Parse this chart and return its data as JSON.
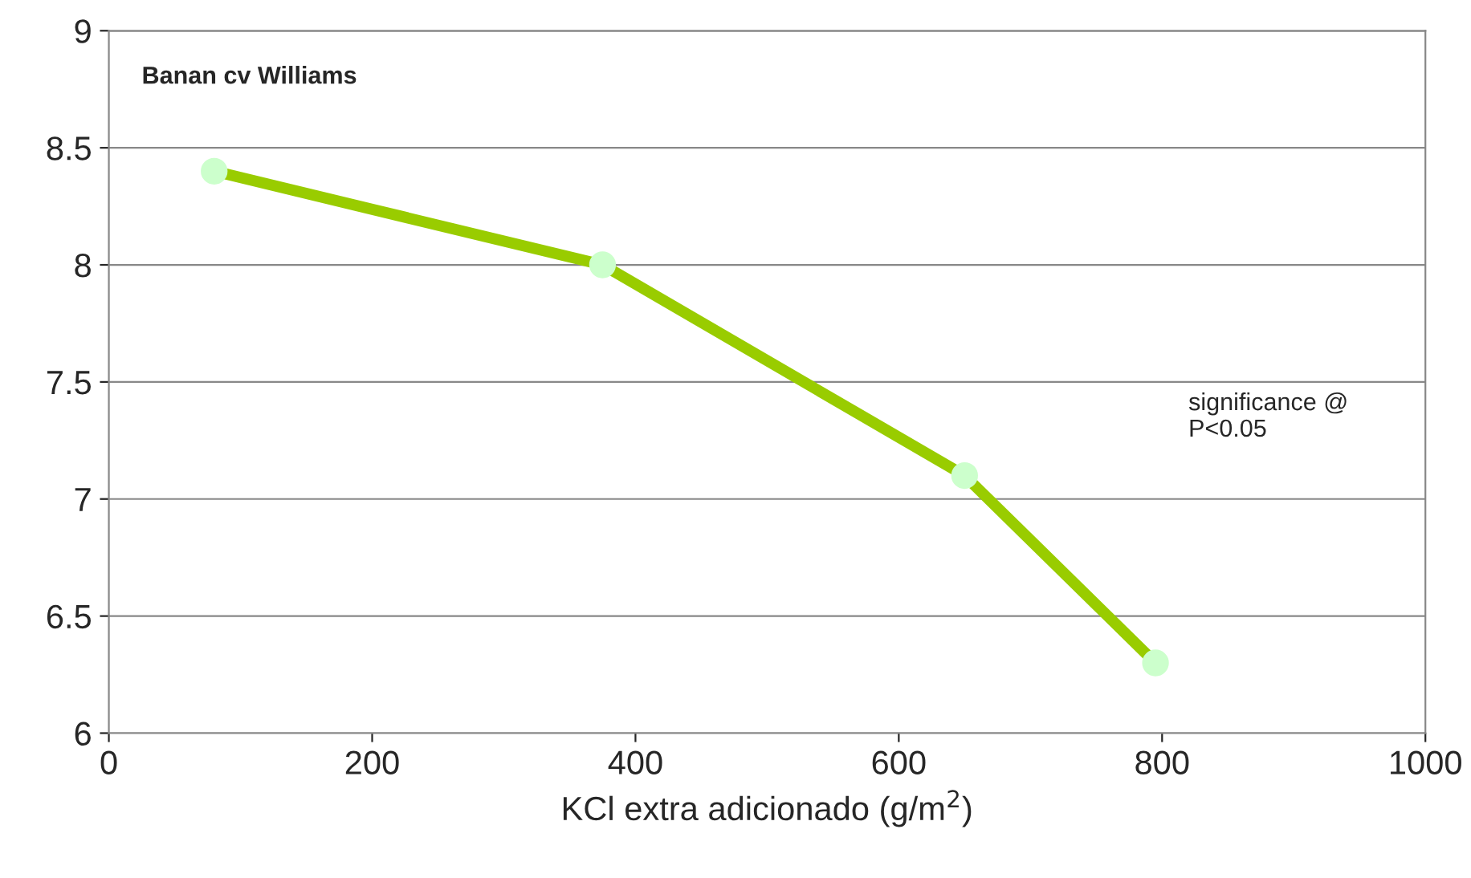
{
  "chart_data": {
    "type": "line",
    "title": "Banan cv Williams",
    "xlabel": "KCl extra adicionado (g/m$^{2}$)",
    "x": [
      80,
      375,
      650,
      795
    ],
    "series": [
      {
        "color": "#99cc00",
        "values": [
          8.4,
          8.0,
          7.1,
          6.3
        ]
      }
    ],
    "marker": "circle",
    "xlim": [
      0,
      1000
    ],
    "xticks": [
      0,
      200,
      400,
      600,
      800,
      1000
    ],
    "ylim": [
      6,
      9
    ],
    "yticks": [
      6,
      6.5,
      7,
      7.5,
      8,
      8.5,
      9
    ],
    "grid": "y",
    "annotations": [
      "significance @\nP<0.05"
    ]
  }
}
